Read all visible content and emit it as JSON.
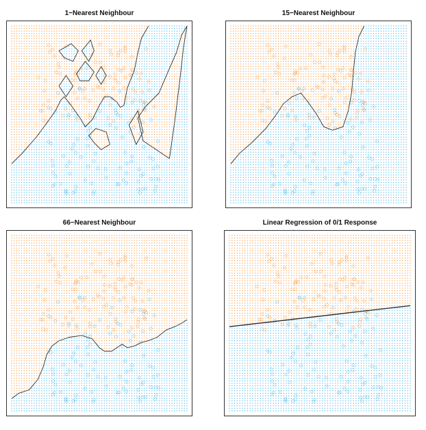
{
  "colors": {
    "orange": "#f28c28",
    "blue": "#29aae1",
    "frame": "#333333",
    "boundary": "#333333"
  },
  "chart_data": [
    {
      "type": "scatter",
      "title": "1−Nearest Neighbour",
      "xlim": [
        0,
        1
      ],
      "ylim": [
        0,
        1
      ],
      "grid": false,
      "boundary": [
        [
          [
            0.0,
            0.22
          ],
          [
            0.06,
            0.28
          ],
          [
            0.14,
            0.37
          ],
          [
            0.2,
            0.45
          ],
          [
            0.25,
            0.52
          ],
          [
            0.28,
            0.58
          ],
          [
            0.3,
            0.6
          ],
          [
            0.34,
            0.55
          ],
          [
            0.39,
            0.48
          ],
          [
            0.42,
            0.43
          ],
          [
            0.46,
            0.47
          ],
          [
            0.5,
            0.55
          ],
          [
            0.53,
            0.6
          ],
          [
            0.56,
            0.6
          ],
          [
            0.6,
            0.57
          ],
          [
            0.62,
            0.54
          ],
          [
            0.64,
            0.55
          ],
          [
            0.66,
            0.65
          ],
          [
            0.7,
            0.75
          ],
          [
            0.72,
            0.85
          ],
          [
            0.74,
            0.93
          ],
          [
            0.78,
            1.0
          ]
        ],
        [
          [
            0.76,
            0.54
          ],
          [
            0.84,
            0.62
          ],
          [
            0.9,
            0.76
          ],
          [
            0.94,
            0.85
          ],
          [
            0.97,
            0.95
          ],
          [
            1.0,
            1.0
          ]
        ],
        [
          [
            0.76,
            0.54
          ],
          [
            0.72,
            0.48
          ],
          [
            0.75,
            0.35
          ],
          [
            0.9,
            0.25
          ]
        ],
        [
          [
            0.9,
            0.25
          ],
          [
            0.93,
            0.46
          ],
          [
            0.96,
            0.7
          ],
          [
            0.98,
            0.88
          ],
          [
            1.0,
            1.0
          ]
        ]
      ],
      "islands": [
        [
          [
            0.27,
            0.86
          ],
          [
            0.34,
            0.9
          ],
          [
            0.38,
            0.86
          ],
          [
            0.35,
            0.8
          ],
          [
            0.3,
            0.82
          ]
        ],
        [
          [
            0.4,
            0.86
          ],
          [
            0.45,
            0.92
          ],
          [
            0.47,
            0.86
          ],
          [
            0.44,
            0.8
          ]
        ],
        [
          [
            0.37,
            0.73
          ],
          [
            0.42,
            0.8
          ],
          [
            0.47,
            0.74
          ],
          [
            0.44,
            0.69
          ],
          [
            0.39,
            0.69
          ]
        ],
        [
          [
            0.48,
            0.72
          ],
          [
            0.51,
            0.77
          ],
          [
            0.54,
            0.72
          ],
          [
            0.51,
            0.67
          ]
        ],
        [
          [
            0.27,
            0.66
          ],
          [
            0.31,
            0.72
          ],
          [
            0.35,
            0.66
          ],
          [
            0.31,
            0.6
          ]
        ],
        [
          [
            0.44,
            0.38
          ],
          [
            0.48,
            0.42
          ],
          [
            0.54,
            0.4
          ],
          [
            0.56,
            0.33
          ],
          [
            0.51,
            0.3
          ],
          [
            0.47,
            0.34
          ]
        ],
        [
          [
            0.67,
            0.44
          ],
          [
            0.72,
            0.52
          ],
          [
            0.75,
            0.4
          ],
          [
            0.71,
            0.33
          ]
        ]
      ],
      "island_class": "blue"
    },
    {
      "type": "scatter",
      "title": "15−Nearest Neighbour",
      "xlim": [
        0,
        1
      ],
      "ylim": [
        0,
        1
      ],
      "grid": false,
      "boundary": [
        [
          [
            0.0,
            0.22
          ],
          [
            0.05,
            0.28
          ],
          [
            0.12,
            0.34
          ],
          [
            0.2,
            0.42
          ],
          [
            0.26,
            0.5
          ],
          [
            0.3,
            0.56
          ],
          [
            0.35,
            0.6
          ],
          [
            0.4,
            0.62
          ],
          [
            0.44,
            0.57
          ],
          [
            0.49,
            0.5
          ],
          [
            0.53,
            0.43
          ],
          [
            0.58,
            0.41
          ],
          [
            0.64,
            0.43
          ],
          [
            0.67,
            0.52
          ],
          [
            0.69,
            0.63
          ],
          [
            0.7,
            0.75
          ],
          [
            0.71,
            0.85
          ],
          [
            0.73,
            0.94
          ],
          [
            0.76,
            1.0
          ]
        ]
      ],
      "islands": []
    },
    {
      "type": "scatter",
      "title": "66−Nearest Neighbour",
      "xlim": [
        0,
        1
      ],
      "ylim": [
        0,
        1
      ],
      "grid": false,
      "boundary": [
        [
          [
            0.0,
            0.07
          ],
          [
            0.04,
            0.1
          ],
          [
            0.1,
            0.12
          ],
          [
            0.15,
            0.18
          ],
          [
            0.18,
            0.25
          ],
          [
            0.2,
            0.32
          ],
          [
            0.23,
            0.37
          ],
          [
            0.27,
            0.4
          ],
          [
            0.33,
            0.42
          ],
          [
            0.4,
            0.43
          ],
          [
            0.46,
            0.41
          ],
          [
            0.5,
            0.36
          ],
          [
            0.53,
            0.34
          ],
          [
            0.57,
            0.34
          ],
          [
            0.6,
            0.36
          ],
          [
            0.63,
            0.38
          ],
          [
            0.66,
            0.36
          ],
          [
            0.7,
            0.37
          ],
          [
            0.74,
            0.39
          ],
          [
            0.78,
            0.4
          ],
          [
            0.83,
            0.42
          ],
          [
            0.88,
            0.46
          ],
          [
            0.93,
            0.48
          ],
          [
            0.97,
            0.5
          ],
          [
            1.0,
            0.52
          ]
        ]
      ],
      "islands": []
    },
    {
      "type": "scatter",
      "title": "Linear Regression of 0/1 Response",
      "xlim": [
        0,
        1
      ],
      "ylim": [
        0,
        1
      ],
      "grid": false,
      "boundary": [
        [
          [
            0.0,
            0.48
          ],
          [
            1.0,
            0.6
          ]
        ]
      ],
      "islands": [],
      "linear": true
    }
  ]
}
